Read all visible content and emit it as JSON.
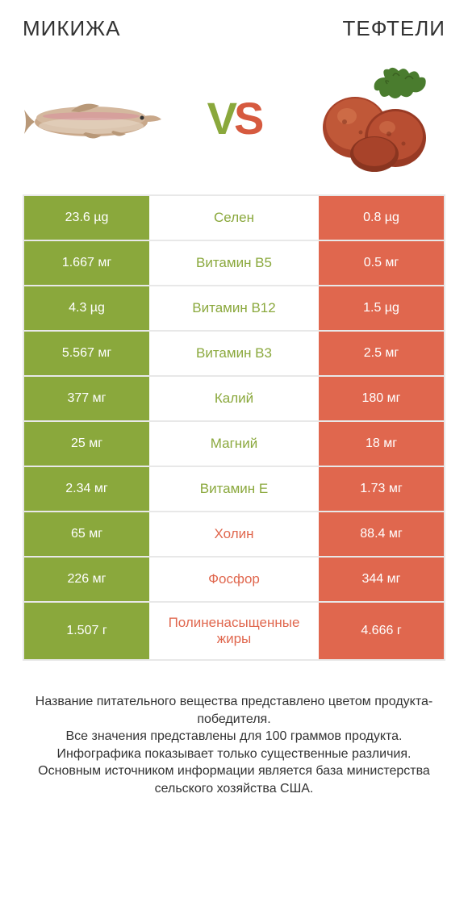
{
  "colors": {
    "green": "#8aa83c",
    "red": "#e0674e",
    "red_vs": "#d65a3f",
    "text": "#333333",
    "border": "#e8e8e8",
    "background": "#ffffff"
  },
  "typography": {
    "title_fontsize": 26,
    "vs_fontsize": 56,
    "cell_fontsize": 16,
    "label_fontsize": 17,
    "footer_fontsize": 16
  },
  "left": {
    "title": "Микижа",
    "image": "fish"
  },
  "right": {
    "title": "Тефтели",
    "image": "meatballs"
  },
  "vs": {
    "v": "V",
    "s": "S"
  },
  "rows": [
    {
      "label": "Селен",
      "left": "23.6 µg",
      "right": "0.8 µg",
      "winner": "left"
    },
    {
      "label": "Витамин B5",
      "left": "1.667 мг",
      "right": "0.5 мг",
      "winner": "left"
    },
    {
      "label": "Витамин B12",
      "left": "4.3 µg",
      "right": "1.5 µg",
      "winner": "left"
    },
    {
      "label": "Витамин B3",
      "left": "5.567 мг",
      "right": "2.5 мг",
      "winner": "left"
    },
    {
      "label": "Калий",
      "left": "377 мг",
      "right": "180 мг",
      "winner": "left"
    },
    {
      "label": "Магний",
      "left": "25 мг",
      "right": "18 мг",
      "winner": "left"
    },
    {
      "label": "Витамин E",
      "left": "2.34 мг",
      "right": "1.73 мг",
      "winner": "left"
    },
    {
      "label": "Холин",
      "left": "65 мг",
      "right": "88.4 мг",
      "winner": "right"
    },
    {
      "label": "Фосфор",
      "left": "226 мг",
      "right": "344 мг",
      "winner": "right"
    },
    {
      "label": "Полиненасыщенные жиры",
      "left": "1.507 г",
      "right": "4.666 г",
      "winner": "right",
      "tall": true
    }
  ],
  "footer": {
    "line1": "Название питательного вещества представлено цветом продукта-победителя.",
    "line2": "Все значения представлены для 100 граммов продукта.",
    "line3": "Инфографика показывает только существенные различия.",
    "line4": "Основным источником информации является база министерства сельского хозяйства США."
  }
}
